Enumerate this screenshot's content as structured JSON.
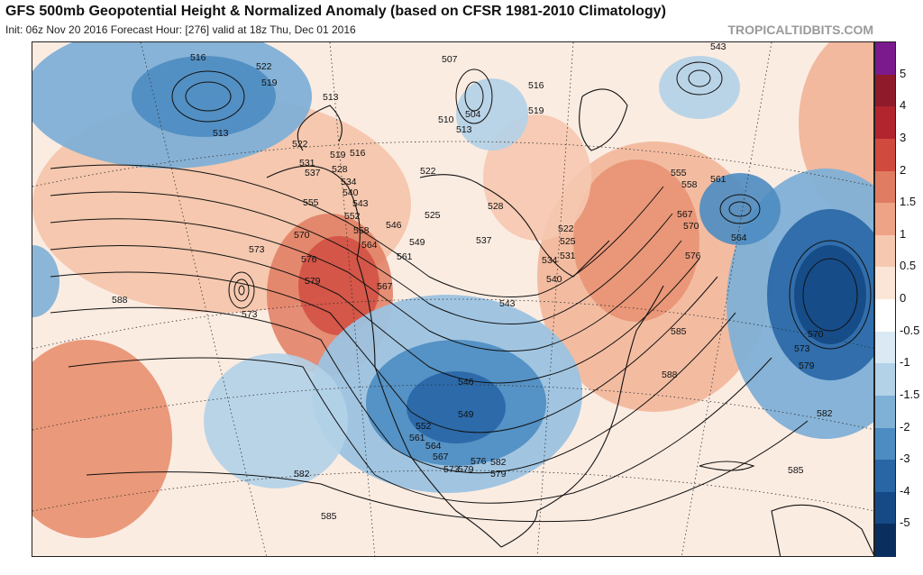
{
  "header": {
    "title": "GFS 500mb Geopotential Height & Normalized Anomaly (based on CFSR 1981-2010 Climatology)",
    "subtitle": "Init: 06z Nov 20 2016   Forecast Hour: [276]   valid at 18z Thu, Dec 01 2016",
    "credit": "TROPICALTIDBITS.COM"
  },
  "colorbar": {
    "labels": [
      "5",
      "4",
      "3",
      "2",
      "1.5",
      "1",
      "0.5",
      "0",
      "-0.5",
      "-1",
      "-1.5",
      "-2",
      "-3",
      "-4",
      "-5"
    ],
    "colors": [
      "#7a1a8c",
      "#8e1a2a",
      "#b2242e",
      "#d04a3e",
      "#e07c62",
      "#eea386",
      "#f6c8b0",
      "#fbe5d6",
      "#ffffff",
      "#dae9f3",
      "#b3d2e8",
      "#7fb0d6",
      "#4d8cc2",
      "#2866a6",
      "#154a86",
      "#0a2e5e"
    ]
  },
  "map": {
    "contour_labels": [
      "516",
      "522",
      "519",
      "513",
      "513",
      "522",
      "519",
      "516",
      "531",
      "528",
      "537",
      "534",
      "540",
      "543",
      "552",
      "555",
      "546",
      "558",
      "549",
      "564",
      "561",
      "567",
      "570",
      "573",
      "576",
      "579",
      "573",
      "588",
      "507",
      "504",
      "510",
      "513",
      "516",
      "519",
      "522",
      "525",
      "528",
      "522",
      "525",
      "531",
      "534",
      "537",
      "540",
      "543",
      "546",
      "549",
      "552",
      "561",
      "564",
      "567",
      "573",
      "576",
      "579",
      "582",
      "579",
      "582",
      "585",
      "543",
      "555",
      "558",
      "561",
      "564",
      "567",
      "570",
      "576",
      "585",
      "588",
      "570",
      "573",
      "579",
      "582",
      "585"
    ]
  }
}
